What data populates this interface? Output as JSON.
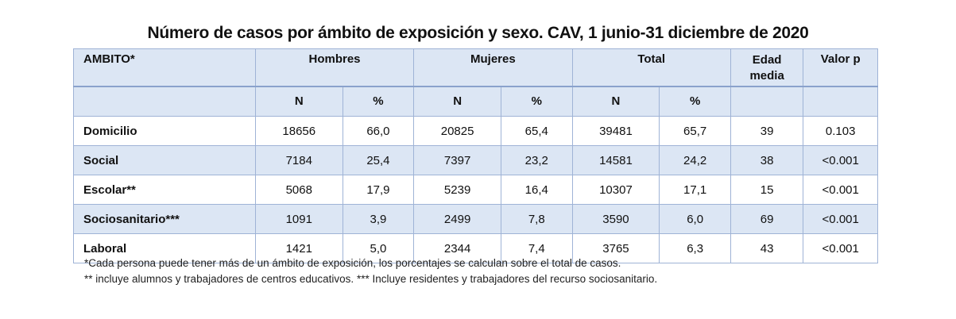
{
  "title": "Número de casos por ámbito de exposición y  sexo. CAV, 1 junio-31 diciembre de 2020",
  "table": {
    "header_row1": {
      "ambito": "AMBITO*",
      "hombres": "Hombres",
      "mujeres": "Mujeres",
      "total": "Total",
      "edad_line1": "Edad",
      "edad_line2": "media",
      "valor_p": "Valor p"
    },
    "header_row2": {
      "hombres_n": "N",
      "hombres_pct": "%",
      "mujeres_n": "N",
      "mujeres_pct": "%",
      "total_n": "N",
      "total_pct": "%"
    },
    "rows": [
      {
        "ambito": "Domicilio",
        "hombres_n": "18656",
        "hombres_pct": "66,0",
        "mujeres_n": "20825",
        "mujeres_pct": "65,4",
        "total_n": "39481",
        "total_pct": "65,7",
        "edad_media": "39",
        "valor_p": "0.103"
      },
      {
        "ambito": "Social",
        "hombres_n": "7184",
        "hombres_pct": "25,4",
        "mujeres_n": "7397",
        "mujeres_pct": "23,2",
        "total_n": "14581",
        "total_pct": "24,2",
        "edad_media": "38",
        "valor_p": "<0.001"
      },
      {
        "ambito": "Escolar**",
        "hombres_n": "5068",
        "hombres_pct": "17,9",
        "mujeres_n": "5239",
        "mujeres_pct": "16,4",
        "total_n": "10307",
        "total_pct": "17,1",
        "edad_media": "15",
        "valor_p": "<0.001"
      },
      {
        "ambito": "Sociosanitario***",
        "hombres_n": "1091",
        "hombres_pct": "3,9",
        "mujeres_n": "2499",
        "mujeres_pct": "7,8",
        "total_n": "3590",
        "total_pct": "6,0",
        "edad_media": "69",
        "valor_p": "<0.001"
      },
      {
        "ambito": "Laboral",
        "hombres_n": "1421",
        "hombres_pct": "5,0",
        "mujeres_n": "2344",
        "mujeres_pct": "7,4",
        "total_n": "3765",
        "total_pct": "6,3",
        "edad_media": "43",
        "valor_p": "<0.001"
      }
    ]
  },
  "notes": [
    "*Cada  persona puede tener más de un ámbito de exposición, los porcentajes se calculan sobre el total de casos.",
    "** incluye alumnos y trabajadores de centros educativos. *** Incluye residentes y trabajadores del recurso sociosanitario."
  ],
  "colors": {
    "header_bg": "#dce6f4",
    "alt_row_bg": "#dce6f4",
    "border": "#9fb3d6"
  }
}
